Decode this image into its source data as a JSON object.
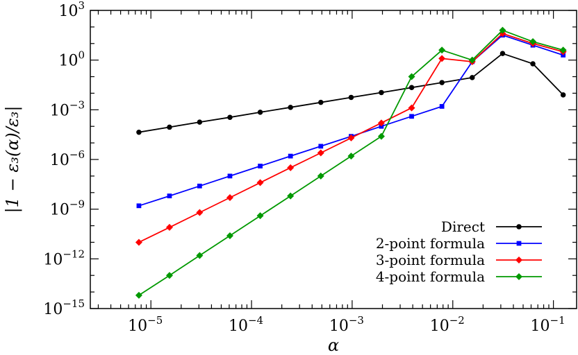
{
  "chart_data": {
    "type": "line",
    "title": "",
    "xlabel": "α",
    "ylabel": "|1 − ε₃(α)/ε₃|",
    "xscale": "log",
    "yscale": "log",
    "xlim": [
      2.5e-06,
      0.17
    ],
    "ylim": [
      1e-15,
      1000
    ],
    "grid": false,
    "legend_position": "bottom-right",
    "xticks": [
      {
        "value": 1e-05,
        "base": "10",
        "exp": "−5"
      },
      {
        "value": 0.0001,
        "base": "10",
        "exp": "−4"
      },
      {
        "value": 0.001,
        "base": "10",
        "exp": "−3"
      },
      {
        "value": 0.01,
        "base": "10",
        "exp": "−2"
      },
      {
        "value": 0.1,
        "base": "10",
        "exp": "−1"
      }
    ],
    "yticks": [
      {
        "value": 1e-15,
        "base": "10",
        "exp": "−15"
      },
      {
        "value": 1e-12,
        "base": "10",
        "exp": "−12"
      },
      {
        "value": 1e-09,
        "base": "10",
        "exp": "−9"
      },
      {
        "value": 1e-06,
        "base": "10",
        "exp": "−6"
      },
      {
        "value": 0.001,
        "base": "10",
        "exp": "−3"
      },
      {
        "value": 1,
        "base": "10",
        "exp": "0"
      },
      {
        "value": 1000,
        "base": "10",
        "exp": "3"
      }
    ],
    "x": [
      7.6e-06,
      1.53e-05,
      3.05e-05,
      6.1e-05,
      0.000122,
      0.000244,
      0.000488,
      0.000977,
      0.00195,
      0.0039,
      0.0078,
      0.0156,
      0.03125,
      0.0625,
      0.125
    ],
    "series": [
      {
        "name": "Direct",
        "color": "#000000",
        "marker": "circle",
        "values": [
          4.4e-05,
          8.9e-05,
          0.00018,
          0.00035,
          0.00071,
          0.0014,
          0.0028,
          0.0056,
          0.011,
          0.022,
          0.044,
          0.088,
          2.5,
          0.6,
          0.0079
        ]
      },
      {
        "name": "2-point formula",
        "color": "#0000ff",
        "marker": "square",
        "values": [
          1.6e-09,
          6.3e-09,
          2.5e-08,
          1e-07,
          4e-07,
          1.6e-06,
          6.3e-06,
          2.5e-05,
          0.0001,
          0.0004,
          0.0016,
          0.8,
          32,
          7.9,
          2.0
        ]
      },
      {
        "name": "3-point formula",
        "color": "#ff0000",
        "marker": "diamond",
        "values": [
          1e-11,
          8e-11,
          6.3e-10,
          5e-09,
          4e-08,
          3.2e-07,
          2.5e-06,
          2e-05,
          0.00016,
          0.0013,
          1.25,
          0.8,
          40,
          10,
          3.2
        ]
      },
      {
        "name": "4-point formula",
        "color": "#009900",
        "marker": "diamond",
        "values": [
          6.3e-15,
          1e-13,
          1.6e-12,
          2.5e-11,
          4e-10,
          6.3e-09,
          1e-07,
          1.6e-06,
          2.5e-05,
          0.1,
          4.0,
          1.0,
          63,
          13,
          4.0
        ]
      }
    ]
  }
}
